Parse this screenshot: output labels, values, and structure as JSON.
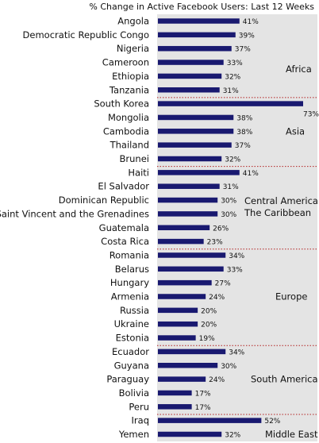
{
  "chart_data": {
    "type": "bar",
    "orientation": "horizontal",
    "title": "% Change in Active Facebook Users: Last 12 Weeks",
    "value_suffix": "%",
    "grid": false,
    "colors": {
      "bar": "#191970",
      "panel": "#e4e4e4",
      "separator": "#b22222"
    },
    "groups": [
      {
        "region_lines": [
          "Africa"
        ],
        "items": [
          {
            "category": "Angola",
            "value": 41
          },
          {
            "category": "Democratic Republic Congo",
            "value": 39
          },
          {
            "category": "Nigeria",
            "value": 37
          },
          {
            "category": "Cameroon",
            "value": 33
          },
          {
            "category": "Ethiopia",
            "value": 32
          },
          {
            "category": "Tanzania",
            "value": 31
          }
        ]
      },
      {
        "region_lines": [
          "Asia"
        ],
        "items": [
          {
            "category": "South Korea",
            "value": 73
          },
          {
            "category": "Mongolia",
            "value": 38
          },
          {
            "category": "Cambodia",
            "value": 38
          },
          {
            "category": "Thailand",
            "value": 37
          },
          {
            "category": "Brunei",
            "value": 32
          }
        ]
      },
      {
        "region_lines": [
          "Central America",
          "The Caribbean"
        ],
        "items": [
          {
            "category": "Haiti",
            "value": 41
          },
          {
            "category": "El Salvador",
            "value": 31
          },
          {
            "category": "Dominican Republic",
            "value": 30
          },
          {
            "category": "Saint Vincent and the Grenadines",
            "value": 30
          },
          {
            "category": "Guatemala",
            "value": 26
          },
          {
            "category": "Costa Rica",
            "value": 23
          }
        ]
      },
      {
        "region_lines": [
          "Europe"
        ],
        "items": [
          {
            "category": "Romania",
            "value": 34
          },
          {
            "category": "Belarus",
            "value": 33
          },
          {
            "category": "Hungary",
            "value": 27
          },
          {
            "category": "Armenia",
            "value": 24
          },
          {
            "category": "Russia",
            "value": 20
          },
          {
            "category": "Ukraine",
            "value": 20
          },
          {
            "category": "Estonia",
            "value": 19
          }
        ]
      },
      {
        "region_lines": [
          "South America"
        ],
        "items": [
          {
            "category": "Ecuador",
            "value": 34
          },
          {
            "category": "Guyana",
            "value": 30
          },
          {
            "category": "Paraguay",
            "value": 24
          },
          {
            "category": "Bolivia",
            "value": 17
          },
          {
            "category": "Peru",
            "value": 17
          }
        ]
      },
      {
        "region_lines": [
          "Middle East"
        ],
        "items": [
          {
            "category": "Iraq",
            "value": 52
          },
          {
            "category": "Yemen",
            "value": 32
          }
        ]
      }
    ]
  }
}
